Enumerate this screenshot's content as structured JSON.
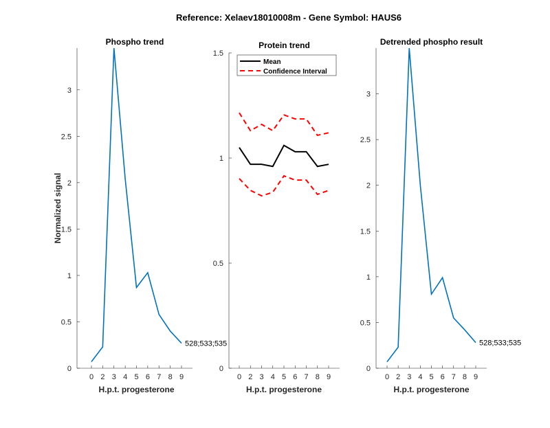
{
  "chart_data": [
    {
      "type": "line",
      "suptitle": "Reference:  Xelaev18010008m - Gene Symbol:  HAUS6",
      "title": "Phospho trend",
      "xlabel": "H.p.t. progesterone",
      "ylabel": "Normalized signal",
      "categories": [
        "0",
        "2",
        "3",
        "4",
        "5",
        "6",
        "7",
        "8",
        "9"
      ],
      "ylim": [
        0,
        3.45
      ],
      "yticks": [
        "0",
        "0.5",
        "1",
        "1.5",
        "2",
        "2.5",
        "3"
      ],
      "series": [
        {
          "name": "528;533;535",
          "color": "#0072bd",
          "values": [
            0.07,
            0.23,
            3.45,
            2.04,
            0.87,
            1.03,
            0.58,
            0.4,
            0.27
          ]
        }
      ],
      "annotation": "528;533;535"
    },
    {
      "type": "line",
      "title": "Protein trend",
      "xlabel": "H.p.t. progesterone",
      "ylabel": "",
      "categories": [
        "0",
        "2",
        "3",
        "4",
        "5",
        "6",
        "7",
        "8",
        "9"
      ],
      "ylim": [
        0,
        1.5
      ],
      "yticks": [
        "0",
        "0.5",
        "1",
        "1.5"
      ],
      "legend": {
        "placement": "top-left",
        "entries": [
          "Mean",
          "Confidence Interval"
        ]
      },
      "series": [
        {
          "name": "Mean",
          "color": "#000000",
          "style": "solid",
          "values": [
            1.05,
            0.97,
            0.97,
            0.96,
            1.06,
            1.03,
            1.03,
            0.96,
            0.97
          ]
        },
        {
          "name": "Confidence Interval",
          "color": "#ff0000",
          "style": "dashed",
          "values": [
            1.215,
            1.13,
            1.16,
            1.13,
            1.205,
            1.186,
            1.186,
            1.108,
            1.12
          ]
        },
        {
          "name": "Confidence Interval (lower)",
          "color": "#ff0000",
          "style": "dashed",
          "values": [
            0.902,
            0.846,
            0.82,
            0.837,
            0.915,
            0.895,
            0.895,
            0.827,
            0.846
          ]
        }
      ]
    },
    {
      "type": "line",
      "title": "Detrended phospho result",
      "xlabel": "H.p.t. progesterone",
      "ylabel": "",
      "categories": [
        "0",
        "2",
        "3",
        "4",
        "5",
        "6",
        "7",
        "8",
        "9"
      ],
      "ylim": [
        0,
        3.5
      ],
      "yticks": [
        "0",
        "0.5",
        "1",
        "1.5",
        "2",
        "2.5",
        "3"
      ],
      "series": [
        {
          "name": "528;533;535",
          "color": "#0072bd",
          "values": [
            0.07,
            0.23,
            3.5,
            2.0,
            0.81,
            0.99,
            0.55,
            0.42,
            0.28
          ]
        }
      ],
      "annotation": "528;533;535"
    }
  ]
}
